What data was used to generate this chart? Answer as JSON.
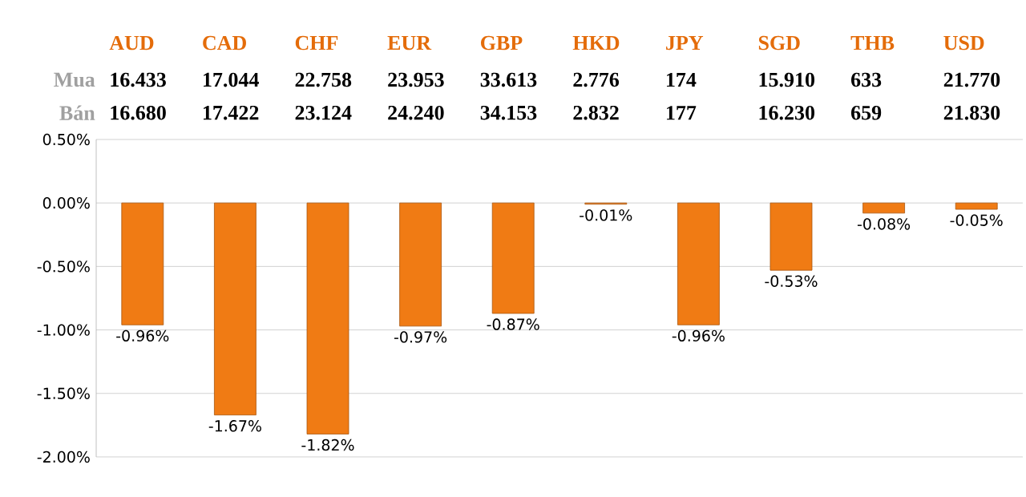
{
  "chart_data": {
    "type": "bar",
    "categories": [
      "AUD",
      "CAD",
      "CHF",
      "EUR",
      "GBP",
      "HKD",
      "JPY",
      "SGD",
      "THB",
      "USD"
    ],
    "values": [
      -0.96,
      -1.67,
      -1.82,
      -0.97,
      -0.87,
      -0.01,
      -0.96,
      -0.53,
      -0.08,
      -0.05
    ],
    "value_labels": [
      "-0.96%",
      "-1.67%",
      "-1.82%",
      "-0.97%",
      "-0.87%",
      "-0.01%",
      "-0.96%",
      "-0.53%",
      "-0.08%",
      "-0.05%"
    ],
    "color": "#f07b14",
    "ylim": [
      -2,
      0.5
    ],
    "yticks": [
      {
        "value": -2,
        "label": "-2.00%"
      },
      {
        "value": -1.5,
        "label": "-1.50%"
      },
      {
        "value": -1,
        "label": "-1.00%"
      },
      {
        "value": -0.5,
        "label": "-0.50%"
      },
      {
        "value": 0,
        "label": "0.00%"
      },
      {
        "value": 0.5,
        "label": "0.50%"
      }
    ],
    "grid": "y",
    "annotations": [
      "Mua",
      "16.433",
      "17.044",
      "22.758",
      "23.953",
      "33.613",
      "2.776",
      "174",
      "15.910",
      "633",
      "21.770",
      "Bán",
      "16.680",
      "17.422",
      "23.124",
      "24.240",
      "34.153",
      "2.832",
      "177",
      "16.230",
      "659",
      "21.830"
    ]
  }
}
